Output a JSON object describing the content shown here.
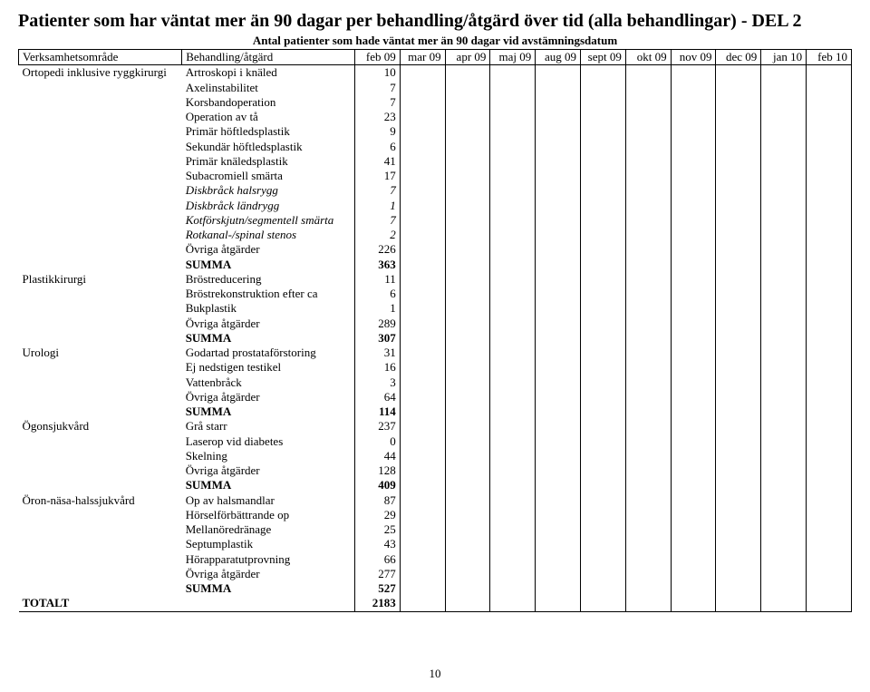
{
  "title": "Patienter som har väntat mer än 90 dagar per behandling/åtgärd över tid (alla behandlingar) - DEL 2",
  "subhead": "Antal patienter som hade väntat mer än 90 dagar vid avstämningsdatum",
  "columns": {
    "area": "Verksamhetsområde",
    "treatment": "Behandling/åtgärd",
    "months": [
      "feb 09",
      "mar 09",
      "apr 09",
      "maj 09",
      "aug 09",
      "sept 09",
      "okt 09",
      "nov 09",
      "dec 09",
      "jan 10",
      "feb 10"
    ]
  },
  "rows": [
    {
      "area": "Ortopedi inklusive ryggkirurgi",
      "treatment": "Artroskopi i knäled",
      "val": "10"
    },
    {
      "area": "",
      "treatment": "Axelinstabilitet",
      "val": "7"
    },
    {
      "area": "",
      "treatment": "Korsbandoperation",
      "val": "7"
    },
    {
      "area": "",
      "treatment": "Operation av tå",
      "val": "23"
    },
    {
      "area": "",
      "treatment": "Primär höftledsplastik",
      "val": "9"
    },
    {
      "area": "",
      "treatment": "Sekundär höftledsplastik",
      "val": "6"
    },
    {
      "area": "",
      "treatment": "Primär knäledsplastik",
      "val": "41"
    },
    {
      "area": "",
      "treatment": "Subacromiell smärta",
      "val": "17"
    },
    {
      "area": "",
      "treatment": "Diskbråck halsrygg",
      "val": "7",
      "italic": true
    },
    {
      "area": "",
      "treatment": "Diskbråck ländrygg",
      "val": "1",
      "italic": true
    },
    {
      "area": "",
      "treatment": "Kotförskjutn/segmentell smärta",
      "val": "7",
      "italic": true
    },
    {
      "area": "",
      "treatment": "Rotkanal-/spinal stenos",
      "val": "2",
      "italic": true
    },
    {
      "area": "",
      "treatment": "Övriga åtgärder",
      "val": "226"
    },
    {
      "area": "",
      "treatment": "SUMMA",
      "val": "363",
      "bold": true,
      "sectionEnd": true
    },
    {
      "area": "Plastikkirurgi",
      "treatment": "Bröstreducering",
      "val": "11"
    },
    {
      "area": "",
      "treatment": "Bröstrekonstruktion efter ca",
      "val": "6"
    },
    {
      "area": "",
      "treatment": "Bukplastik",
      "val": "1"
    },
    {
      "area": "",
      "treatment": "Övriga åtgärder",
      "val": "289"
    },
    {
      "area": "",
      "treatment": "SUMMA",
      "val": "307",
      "bold": true,
      "sectionEnd": true
    },
    {
      "area": "Urologi",
      "treatment": "Godartad prostataförstoring",
      "val": "31"
    },
    {
      "area": "",
      "treatment": "Ej nedstigen testikel",
      "val": "16"
    },
    {
      "area": "",
      "treatment": "Vattenbråck",
      "val": "3"
    },
    {
      "area": "",
      "treatment": "Övriga åtgärder",
      "val": "64"
    },
    {
      "area": "",
      "treatment": "SUMMA",
      "val": "114",
      "bold": true,
      "sectionEnd": true
    },
    {
      "area": "Ögonsjukvård",
      "treatment": "Grå starr",
      "val": "237"
    },
    {
      "area": "",
      "treatment": "Laserop vid diabetes",
      "val": "0"
    },
    {
      "area": "",
      "treatment": "Skelning",
      "val": "44"
    },
    {
      "area": "",
      "treatment": "Övriga åtgärder",
      "val": "128"
    },
    {
      "area": "",
      "treatment": "SUMMA",
      "val": "409",
      "bold": true,
      "sectionEnd": true
    },
    {
      "area": "Öron-näsa-halssjukvård",
      "treatment": "Op av halsmandlar",
      "val": "87"
    },
    {
      "area": "",
      "treatment": "Hörselförbättrande op",
      "val": "29"
    },
    {
      "area": "",
      "treatment": "Mellanöredränage",
      "val": "25"
    },
    {
      "area": "",
      "treatment": "Septumplastik",
      "val": "43"
    },
    {
      "area": "",
      "treatment": "Hörapparatutprovning",
      "val": "66"
    },
    {
      "area": "",
      "treatment": "Övriga åtgärder",
      "val": "277"
    },
    {
      "area": "",
      "treatment": "SUMMA",
      "val": "527",
      "bold": true,
      "sectionEnd": true
    },
    {
      "area": "TOTALT",
      "treatment": "",
      "val": "2183",
      "bold": true,
      "grand": true
    }
  ],
  "pageNumber": "10"
}
